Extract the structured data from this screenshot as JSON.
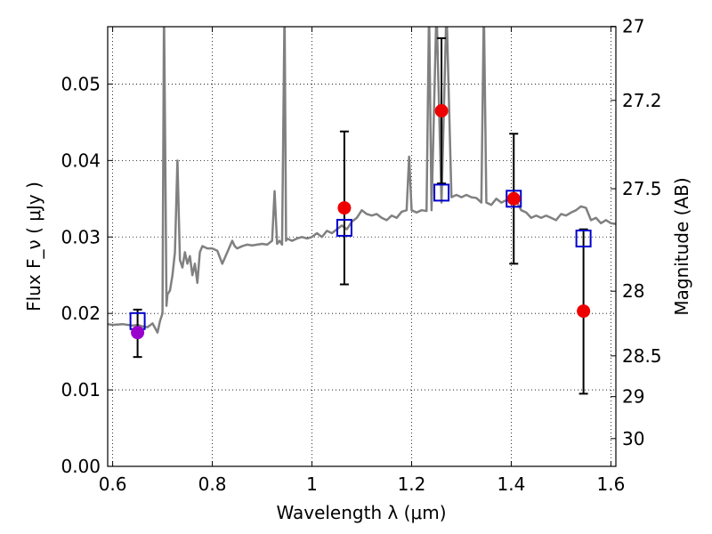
{
  "chart_data": {
    "type": "scatter",
    "title": "",
    "xlabel": "Wavelength  λ (μm)",
    "ylabel": "Flux  F_ν  ( μJy )",
    "ylabel_right": "Magnitude (AB)",
    "xlim": [
      0.59,
      1.61
    ],
    "ylim": [
      0.0,
      0.0575
    ],
    "grid": true,
    "x_ticks": [
      0.6,
      0.8,
      1.0,
      1.2,
      1.4,
      1.6
    ],
    "x_tick_labels": [
      "0.6",
      "0.8",
      "1",
      "1.2",
      "1.4",
      "1.6"
    ],
    "y_ticks": [
      0.0,
      0.01,
      0.02,
      0.03,
      0.04,
      0.05
    ],
    "y_tick_labels": [
      "0.00",
      "0.01",
      "0.02",
      "0.03",
      "0.04",
      "0.05"
    ],
    "right_ticks": [
      {
        "mag": 27,
        "label": "27"
      },
      {
        "mag": 27.2,
        "label": "27.2"
      },
      {
        "mag": 27.5,
        "label": "27.5"
      },
      {
        "mag": 28,
        "label": "28"
      },
      {
        "mag": 28.5,
        "label": "28.5"
      },
      {
        "mag": 29,
        "label": "29"
      },
      {
        "mag": 30,
        "label": "30"
      }
    ],
    "series": [
      {
        "kind": "spectrum_line",
        "color": "#808080",
        "x": [
          0.59,
          0.6,
          0.62,
          0.64,
          0.65,
          0.66,
          0.67,
          0.68,
          0.69,
          0.695,
          0.7,
          0.703,
          0.705,
          0.708,
          0.71,
          0.715,
          0.72,
          0.725,
          0.73,
          0.735,
          0.74,
          0.745,
          0.75,
          0.755,
          0.76,
          0.765,
          0.77,
          0.775,
          0.78,
          0.79,
          0.8,
          0.81,
          0.82,
          0.83,
          0.84,
          0.845,
          0.85,
          0.86,
          0.87,
          0.88,
          0.89,
          0.9,
          0.91,
          0.92,
          0.925,
          0.93,
          0.935,
          0.94,
          0.945,
          0.948,
          0.95,
          0.96,
          0.97,
          0.98,
          0.99,
          1.0,
          1.01,
          1.02,
          1.03,
          1.04,
          1.05,
          1.06,
          1.07,
          1.08,
          1.09,
          1.1,
          1.11,
          1.12,
          1.13,
          1.14,
          1.15,
          1.16,
          1.17,
          1.18,
          1.19,
          1.195,
          1.2,
          1.21,
          1.22,
          1.23,
          1.235,
          1.24,
          1.25,
          1.26,
          1.27,
          1.28,
          1.29,
          1.3,
          1.31,
          1.32,
          1.33,
          1.34,
          1.345,
          1.35,
          1.36,
          1.37,
          1.38,
          1.39,
          1.4,
          1.41,
          1.42,
          1.43,
          1.44,
          1.45,
          1.46,
          1.47,
          1.48,
          1.49,
          1.5,
          1.51,
          1.52,
          1.53,
          1.54,
          1.55,
          1.56,
          1.57,
          1.58,
          1.59,
          1.6,
          1.61
        ],
        "y": [
          0.0186,
          0.0185,
          0.0186,
          0.0184,
          0.0185,
          0.0183,
          0.0182,
          0.0187,
          0.0175,
          0.019,
          0.02,
          0.06,
          0.045,
          0.021,
          0.0225,
          0.023,
          0.025,
          0.028,
          0.04,
          0.027,
          0.026,
          0.028,
          0.0265,
          0.0275,
          0.025,
          0.0265,
          0.024,
          0.028,
          0.0288,
          0.0285,
          0.0285,
          0.0282,
          0.0265,
          0.028,
          0.0295,
          0.0288,
          0.0285,
          0.0288,
          0.029,
          0.0289,
          0.029,
          0.0291,
          0.029,
          0.0295,
          0.036,
          0.0291,
          0.0295,
          0.029,
          0.06,
          0.0295,
          0.0298,
          0.0295,
          0.0298,
          0.03,
          0.0298,
          0.03,
          0.0305,
          0.03,
          0.0308,
          0.0305,
          0.031,
          0.0315,
          0.031,
          0.032,
          0.0325,
          0.0335,
          0.033,
          0.0328,
          0.033,
          0.0325,
          0.0322,
          0.0328,
          0.0325,
          0.0333,
          0.0335,
          0.0405,
          0.0335,
          0.0332,
          0.0335,
          0.0334,
          0.06,
          0.0335,
          0.06,
          0.0345,
          0.06,
          0.0352,
          0.0355,
          0.0352,
          0.0355,
          0.0352,
          0.0351,
          0.0345,
          0.06,
          0.0345,
          0.0342,
          0.035,
          0.0345,
          0.0348,
          0.0351,
          0.0347,
          0.0335,
          0.0332,
          0.0325,
          0.0328,
          0.0325,
          0.0328,
          0.0325,
          0.0322,
          0.033,
          0.0328,
          0.0332,
          0.0335,
          0.034,
          0.0338,
          0.0322,
          0.0325,
          0.0318,
          0.0322,
          0.0318,
          0.0317
        ]
      },
      {
        "kind": "model_squares",
        "color": "#0000cc",
        "x": [
          0.65,
          1.065,
          1.26,
          1.405,
          1.545
        ],
        "y": [
          0.019,
          0.0312,
          0.0358,
          0.035,
          0.0298
        ]
      },
      {
        "kind": "observed_points",
        "x": [
          0.65,
          1.065,
          1.26,
          1.405,
          1.545
        ],
        "y": [
          0.0175,
          0.0338,
          0.0465,
          0.035,
          0.0203
        ],
        "yerr_low": [
          0.0143,
          0.0238,
          0.037,
          0.0265,
          0.0095
        ],
        "yerr_high": [
          0.0205,
          0.0438,
          0.056,
          0.0435,
          0.031
        ],
        "colors": [
          "#9900cc",
          "#ee0000",
          "#ee0000",
          "#ee0000",
          "#ee0000"
        ]
      }
    ]
  }
}
